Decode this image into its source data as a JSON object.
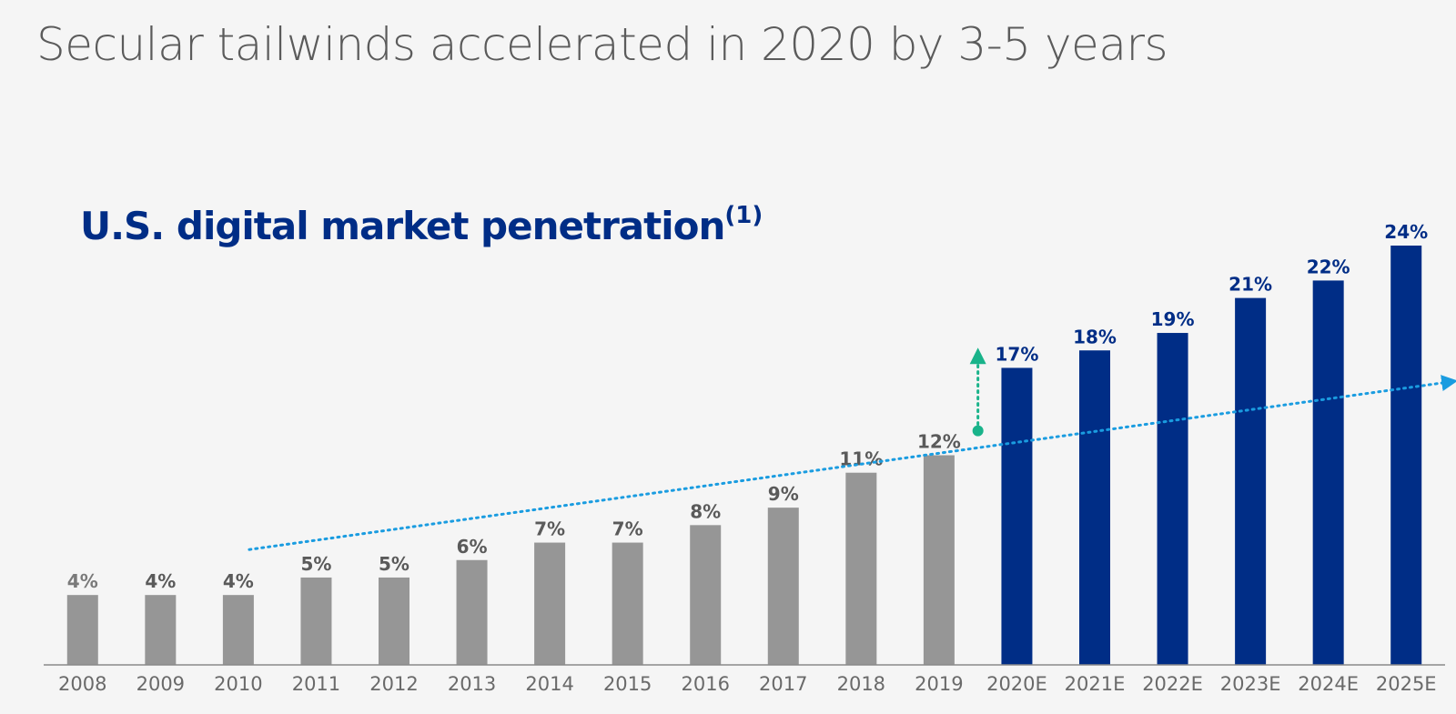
{
  "page": {
    "title": "Secular tailwinds accelerated in 2020 by 3-5 years"
  },
  "chart_data": {
    "type": "bar",
    "title": "U.S. digital market penetration",
    "title_footnote": "(1)",
    "categories": [
      "2008",
      "2009",
      "2010",
      "2011",
      "2012",
      "2013",
      "2014",
      "2015",
      "2016",
      "2017",
      "2018",
      "2019",
      "2020E",
      "2021E",
      "2022E",
      "2023E",
      "2024E",
      "2025E"
    ],
    "values": [
      4,
      4,
      4,
      5,
      5,
      6,
      7,
      7,
      8,
      9,
      11,
      12,
      17,
      18,
      19,
      21,
      22,
      24
    ],
    "data_labels": [
      "4%",
      "4%",
      "4%",
      "5%",
      "5%",
      "6%",
      "7%",
      "7%",
      "8%",
      "9%",
      "11%",
      "12%",
      "17%",
      "18%",
      "19%",
      "21%",
      "22%",
      "24%"
    ],
    "estimated_from_index": 12,
    "ylim": [
      0,
      24
    ],
    "grid": false,
    "legend": "none",
    "colors": {
      "actual_bar": "#969696",
      "estimate_bar": "#002d86",
      "actual_label": "#5a5a5a",
      "estimate_label": "#002d86",
      "trend_line": "#1a9ce0",
      "acceleration_arrow": "#19b38a",
      "axis": "#8a8a8a"
    },
    "annotations": {
      "trend_line": {
        "from": {
          "x": "2010",
          "y": 6.6
        },
        "to": {
          "x": "2025E",
          "y": 16.2
        },
        "style": "dotted-arrow"
      },
      "acceleration_arrow": {
        "x": "2019",
        "from_y": 13.4,
        "to_y": 18.0,
        "style": "dotted-arrow-up"
      }
    }
  }
}
